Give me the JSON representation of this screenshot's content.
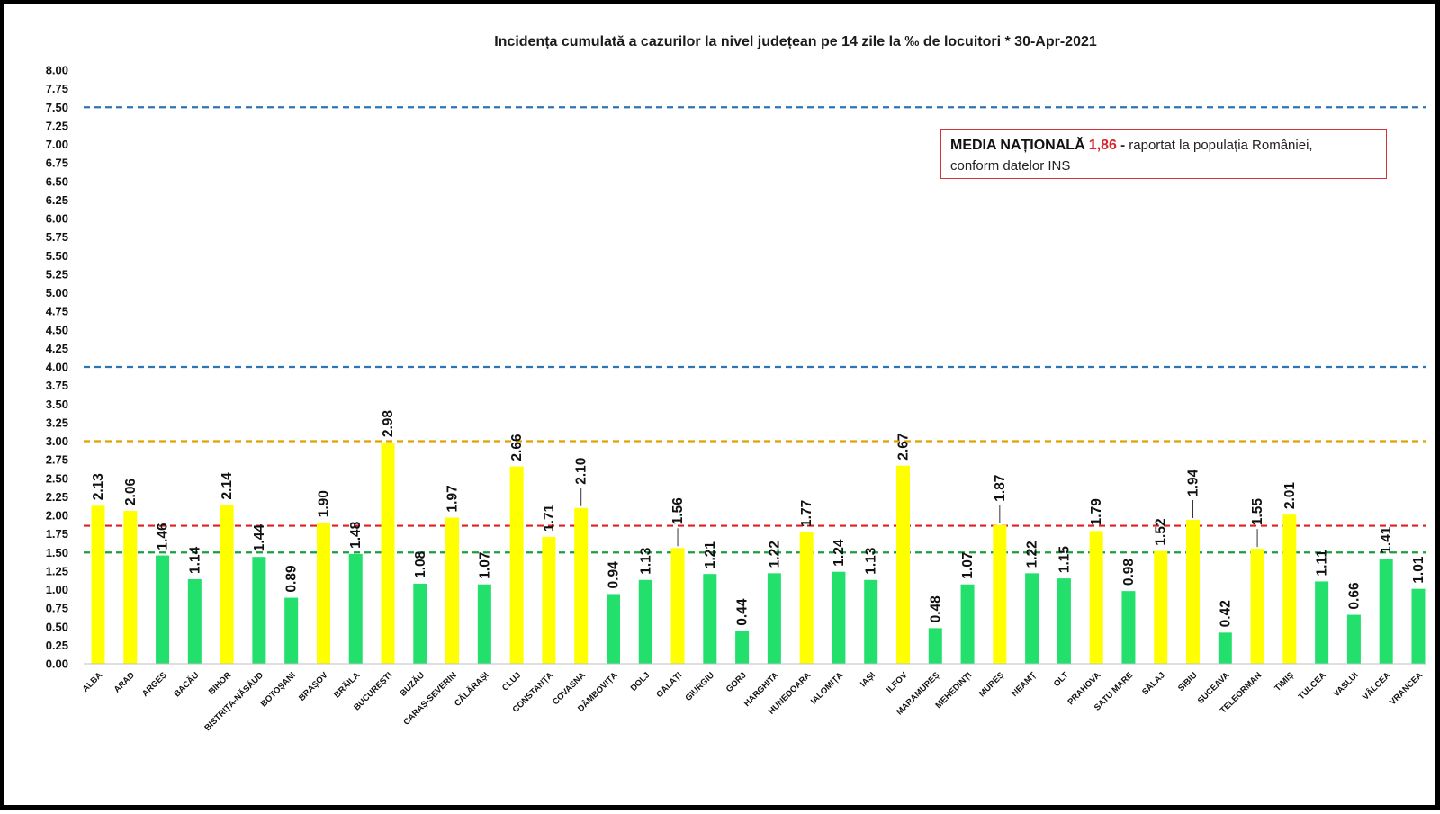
{
  "chart_data": {
    "type": "bar",
    "title": "Incidența cumulată a cazurilor la nivel județean pe 14 zile la ‰ de locuitori *   30-Apr-2021",
    "ylim": [
      0,
      8
    ],
    "ytick_step": 0.25,
    "yticks": [
      "0.00",
      "0.25",
      "0.50",
      "0.75",
      "1.00",
      "1.25",
      "1.50",
      "1.75",
      "2.00",
      "2.25",
      "2.50",
      "2.75",
      "3.00",
      "3.25",
      "3.50",
      "3.75",
      "4.00",
      "4.25",
      "4.50",
      "4.75",
      "5.00",
      "5.25",
      "5.50",
      "5.75",
      "6.00",
      "6.25",
      "6.50",
      "6.75",
      "7.00",
      "7.25",
      "7.50",
      "7.75",
      "8.00"
    ],
    "grid": false,
    "categories": [
      "ALBA",
      "ARAD",
      "ARGEȘ",
      "BACĂU",
      "BIHOR",
      "BISTRIȚA-NĂSĂUD",
      "BOTOȘANI",
      "BRAȘOV",
      "BRĂILA",
      "BUCUREȘTI",
      "BUZĂU",
      "CARAȘ-SEVERIN",
      "CĂLĂRAȘI",
      "CLUJ",
      "CONSTANȚA",
      "COVASNA",
      "DÂMBOVIȚA",
      "DOLJ",
      "GALAȚI",
      "GIURGIU",
      "GORJ",
      "HARGHITA",
      "HUNEDOARA",
      "IALOMIȚA",
      "IAȘI",
      "ILFOV",
      "MARAMUREȘ",
      "MEHEDINȚI",
      "MUREȘ",
      "NEAMȚ",
      "OLT",
      "PRAHOVA",
      "SATU MARE",
      "SĂLAJ",
      "SIBIU",
      "SUCEAVA",
      "TELEORMAN",
      "TIMIȘ",
      "TULCEA",
      "VASLUI",
      "VÂLCEA",
      "VRANCEA"
    ],
    "values": [
      2.13,
      2.06,
      1.46,
      1.14,
      2.14,
      1.44,
      0.89,
      1.9,
      1.48,
      2.98,
      1.08,
      1.97,
      1.07,
      2.66,
      1.71,
      2.1,
      0.94,
      1.13,
      1.56,
      1.21,
      0.44,
      1.22,
      1.77,
      1.24,
      1.13,
      2.67,
      0.48,
      1.07,
      1.87,
      1.22,
      1.15,
      1.79,
      0.98,
      1.52,
      1.94,
      0.42,
      1.55,
      2.01,
      1.11,
      0.66,
      1.41,
      1.01
    ],
    "value_labels": [
      "2.13",
      "2.06",
      "1.46",
      "1.14",
      "2.14",
      "1.44",
      "0.89",
      "1.90",
      "1.48",
      "2.98",
      "1.08",
      "1.97",
      "1.07",
      "2.66",
      "1.71",
      "2.10",
      "0.94",
      "1.13",
      "1.56",
      "1.21",
      "0.44",
      "1.22",
      "1.77",
      "1.24",
      "1.13",
      "2.67",
      "0.48",
      "1.07",
      "1.87",
      "1.22",
      "1.15",
      "1.79",
      "0.98",
      "1.52",
      "1.94",
      "0.42",
      "1.55",
      "2.01",
      "1.11",
      "0.66",
      "1.41",
      "1.01"
    ],
    "bar_colors": {
      "below_1.5": "#22e06b",
      "above_1.5": "#ffff00"
    },
    "reference_lines": [
      {
        "value": 7.5,
        "color": "#2e75b6"
      },
      {
        "value": 4.0,
        "color": "#2e75b6"
      },
      {
        "value": 3.0,
        "color": "#e0a000"
      },
      {
        "value": 1.86,
        "color": "#e02020"
      },
      {
        "value": 1.5,
        "color": "#1a9e3c"
      }
    ]
  },
  "annotation": {
    "heading": "MEDIA NAȚIONALĂ",
    "value": "1,86",
    "dash": "-",
    "text_line1": "raportat la populația României,",
    "text_line2": "conform datelor INS"
  }
}
